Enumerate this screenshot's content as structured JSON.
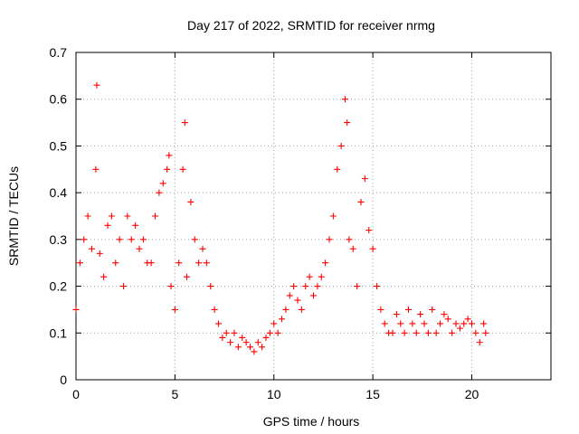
{
  "chart_data": {
    "type": "scatter",
    "title": "Day 217 of 2022, SRMTID for receiver nrmg",
    "xlabel": "GPS time / hours",
    "ylabel": "SRMTID / TECUs",
    "xlim": [
      0,
      24
    ],
    "ylim": [
      0,
      0.7
    ],
    "xticks": [
      0,
      5,
      10,
      15,
      20
    ],
    "xtick_labels": [
      "0",
      "5",
      "10",
      "15",
      "20"
    ],
    "yticks": [
      0,
      0.1,
      0.2,
      0.3,
      0.4,
      0.5,
      0.6,
      0.7
    ],
    "ytick_labels": [
      "0",
      "0.1",
      "0.2",
      "0.3",
      "0.4",
      "0.5",
      "0.6",
      "0.7"
    ],
    "grid": true,
    "marker": "+",
    "color": "#ff0000",
    "x": [
      0.0,
      0.2,
      0.4,
      0.6,
      0.8,
      1.0,
      1.05,
      1.2,
      1.4,
      1.6,
      1.8,
      2.0,
      2.2,
      2.4,
      2.6,
      2.8,
      3.0,
      3.2,
      3.4,
      3.6,
      3.8,
      4.0,
      4.2,
      4.4,
      4.6,
      4.7,
      4.8,
      5.0,
      5.2,
      5.4,
      5.5,
      5.6,
      5.8,
      6.0,
      6.2,
      6.4,
      6.6,
      6.8,
      7.0,
      7.2,
      7.4,
      7.6,
      7.8,
      8.0,
      8.2,
      8.4,
      8.6,
      8.8,
      9.0,
      9.2,
      9.4,
      9.6,
      9.8,
      10.0,
      10.2,
      10.4,
      10.6,
      10.8,
      11.0,
      11.2,
      11.4,
      11.6,
      11.8,
      12.0,
      12.2,
      12.4,
      12.6,
      12.8,
      13.0,
      13.2,
      13.4,
      13.6,
      13.7,
      13.8,
      14.0,
      14.2,
      14.4,
      14.6,
      14.8,
      15.0,
      15.2,
      15.4,
      15.6,
      15.8,
      16.0,
      16.2,
      16.4,
      16.6,
      16.8,
      17.0,
      17.2,
      17.4,
      17.6,
      17.8,
      18.0,
      18.2,
      18.4,
      18.6,
      18.8,
      19.0,
      19.2,
      19.4,
      19.6,
      19.8,
      20.0,
      20.2,
      20.4,
      20.6,
      20.7
    ],
    "y": [
      0.15,
      0.25,
      0.3,
      0.35,
      0.28,
      0.45,
      0.63,
      0.27,
      0.22,
      0.33,
      0.35,
      0.25,
      0.3,
      0.2,
      0.35,
      0.3,
      0.33,
      0.28,
      0.3,
      0.25,
      0.25,
      0.35,
      0.4,
      0.42,
      0.45,
      0.48,
      0.2,
      0.15,
      0.25,
      0.45,
      0.55,
      0.22,
      0.38,
      0.3,
      0.25,
      0.28,
      0.25,
      0.2,
      0.15,
      0.12,
      0.09,
      0.1,
      0.08,
      0.1,
      0.07,
      0.09,
      0.08,
      0.07,
      0.06,
      0.08,
      0.07,
      0.09,
      0.1,
      0.12,
      0.1,
      0.13,
      0.15,
      0.18,
      0.2,
      0.17,
      0.15,
      0.2,
      0.22,
      0.18,
      0.2,
      0.22,
      0.25,
      0.3,
      0.35,
      0.45,
      0.5,
      0.6,
      0.55,
      0.3,
      0.28,
      0.2,
      0.38,
      0.43,
      0.32,
      0.28,
      0.2,
      0.15,
      0.12,
      0.1,
      0.1,
      0.14,
      0.12,
      0.1,
      0.15,
      0.12,
      0.1,
      0.14,
      0.12,
      0.1,
      0.15,
      0.1,
      0.12,
      0.14,
      0.13,
      0.1,
      0.12,
      0.11,
      0.12,
      0.13,
      0.12,
      0.1,
      0.08,
      0.12,
      0.1
    ]
  }
}
